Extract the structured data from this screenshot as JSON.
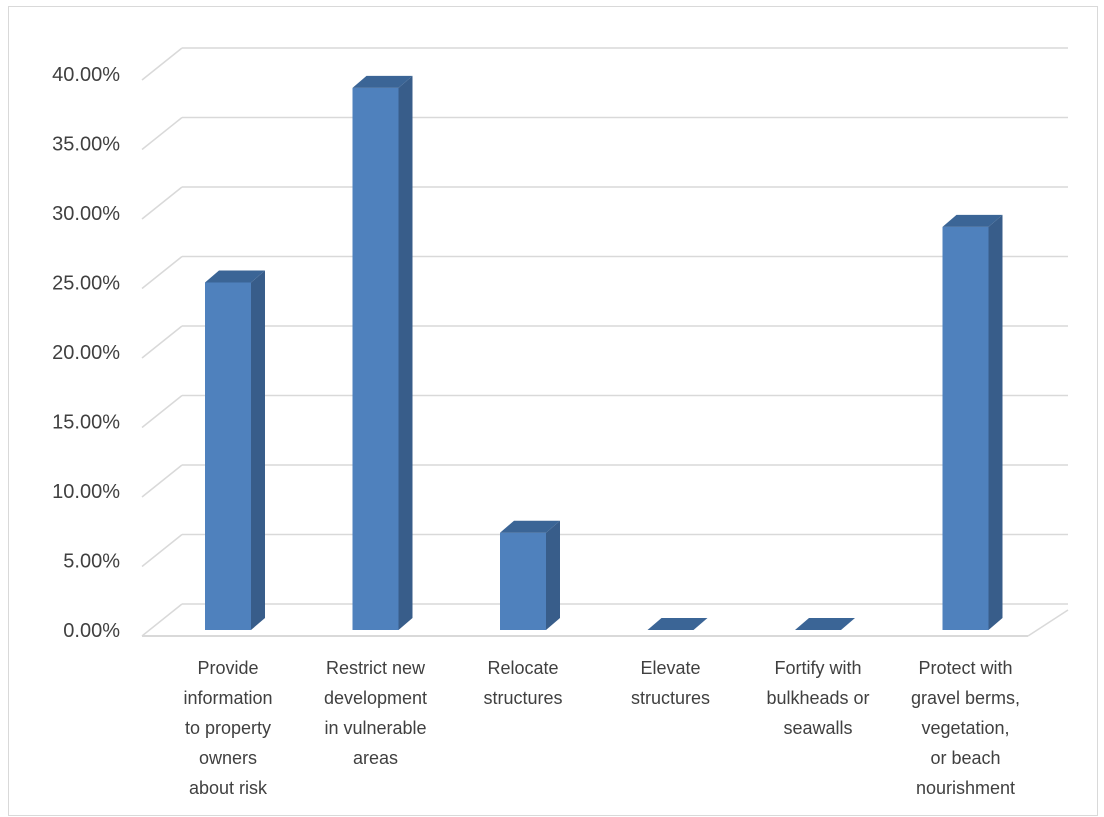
{
  "chart_data": {
    "type": "bar",
    "categories": [
      [
        "Provide",
        "information",
        "to property",
        "owners",
        "about risk"
      ],
      [
        "Restrict new",
        "development",
        "in vulnerable",
        "areas"
      ],
      [
        "Relocate",
        "structures"
      ],
      [
        "Elevate",
        "structures"
      ],
      [
        "Fortify with",
        "bulkheads or",
        "seawalls"
      ],
      [
        "Protect with",
        "gravel berms,",
        "vegetation,",
        "or beach",
        "nourishment"
      ]
    ],
    "values": [
      25.0,
      39.0,
      7.0,
      0.0,
      0.0,
      29.0
    ],
    "yticks": [
      "0.00%",
      "5.00%",
      "10.00%",
      "15.00%",
      "20.00%",
      "25.00%",
      "30.00%",
      "35.00%",
      "40.00%"
    ],
    "ylim": [
      0,
      40
    ],
    "unit": "%",
    "grid": true,
    "style": "3d-column",
    "title": "",
    "xlabel": "",
    "ylabel": "",
    "colors": {
      "bar_front": "#4f81bd",
      "bar_side": "#385d8a",
      "bar_top": "#3b6596",
      "grid": "#d9d9d9",
      "text": "#404040"
    }
  }
}
